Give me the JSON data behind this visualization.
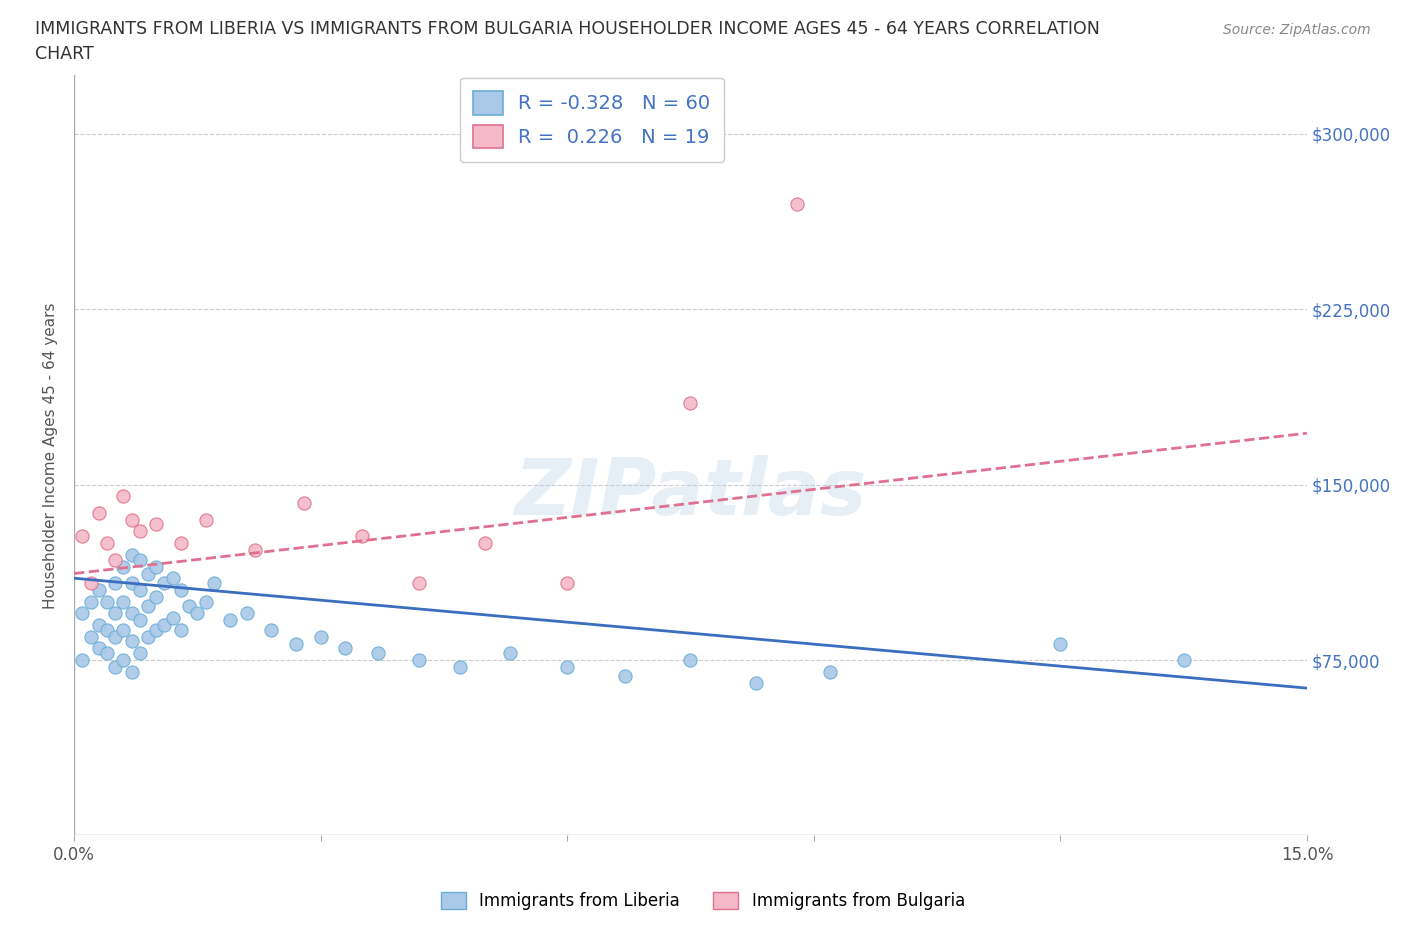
{
  "title_line1": "IMMIGRANTS FROM LIBERIA VS IMMIGRANTS FROM BULGARIA HOUSEHOLDER INCOME AGES 45 - 64 YEARS CORRELATION",
  "title_line2": "CHART",
  "source": "Source: ZipAtlas.com",
  "ylabel": "Householder Income Ages 45 - 64 years",
  "xlim": [
    0,
    0.15
  ],
  "ylim": [
    0,
    325000
  ],
  "yticks": [
    0,
    75000,
    150000,
    225000,
    300000
  ],
  "xticks": [
    0.0,
    0.03,
    0.06,
    0.09,
    0.12,
    0.15
  ],
  "xtick_labels": [
    "0.0%",
    "",
    "",
    "",
    "",
    "15.0%"
  ],
  "watermark": "ZIPatlas",
  "R_blue": -0.328,
  "N_blue": 60,
  "R_pink": 0.226,
  "N_pink": 19,
  "liberia_color": "#aac8e8",
  "liberia_edge": "#6aaed6",
  "bulgaria_color": "#f4b8c8",
  "bulgaria_edge": "#e07090",
  "trendline_blue": "#3c6ebf",
  "trendline_pink": "#e07090",
  "legend_label_liberia": "Immigrants from Liberia",
  "legend_label_bulgaria": "Immigrants from Bulgaria",
  "background_color": "#ffffff",
  "grid_color": "#cccccc",
  "trendline_blue_x0": 0.0,
  "trendline_blue_y0": 110000,
  "trendline_blue_x1": 0.15,
  "trendline_blue_y1": 63000,
  "trendline_pink_x0": 0.0,
  "trendline_pink_y0": 112000,
  "trendline_pink_x1": 0.15,
  "trendline_pink_y1": 172000,
  "liberia_x": [
    0.001,
    0.001,
    0.002,
    0.002,
    0.003,
    0.003,
    0.003,
    0.004,
    0.004,
    0.004,
    0.005,
    0.005,
    0.005,
    0.005,
    0.006,
    0.006,
    0.006,
    0.006,
    0.007,
    0.007,
    0.007,
    0.007,
    0.007,
    0.008,
    0.008,
    0.008,
    0.008,
    0.009,
    0.009,
    0.009,
    0.01,
    0.01,
    0.01,
    0.011,
    0.011,
    0.012,
    0.012,
    0.013,
    0.013,
    0.014,
    0.015,
    0.016,
    0.017,
    0.019,
    0.021,
    0.024,
    0.027,
    0.03,
    0.033,
    0.037,
    0.042,
    0.047,
    0.053,
    0.06,
    0.067,
    0.075,
    0.083,
    0.092,
    0.12,
    0.135
  ],
  "liberia_y": [
    95000,
    75000,
    100000,
    85000,
    105000,
    90000,
    80000,
    100000,
    88000,
    78000,
    108000,
    95000,
    85000,
    72000,
    115000,
    100000,
    88000,
    75000,
    120000,
    108000,
    95000,
    83000,
    70000,
    118000,
    105000,
    92000,
    78000,
    112000,
    98000,
    85000,
    115000,
    102000,
    88000,
    108000,
    90000,
    110000,
    93000,
    105000,
    88000,
    98000,
    95000,
    100000,
    108000,
    92000,
    95000,
    88000,
    82000,
    85000,
    80000,
    78000,
    75000,
    72000,
    78000,
    72000,
    68000,
    75000,
    65000,
    70000,
    82000,
    75000
  ],
  "bulgaria_x": [
    0.001,
    0.002,
    0.003,
    0.004,
    0.005,
    0.006,
    0.007,
    0.008,
    0.01,
    0.013,
    0.016,
    0.022,
    0.028,
    0.035,
    0.042,
    0.05,
    0.06,
    0.075,
    0.088
  ],
  "bulgaria_y": [
    128000,
    108000,
    138000,
    125000,
    118000,
    145000,
    135000,
    130000,
    133000,
    125000,
    135000,
    122000,
    142000,
    128000,
    108000,
    125000,
    108000,
    185000,
    270000
  ]
}
